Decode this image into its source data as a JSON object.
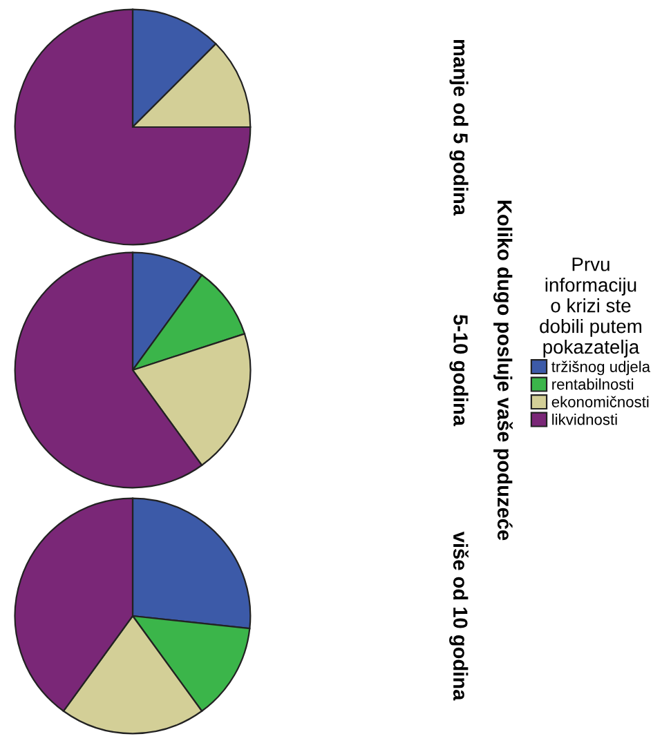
{
  "chart_data": [
    {
      "type": "pie",
      "title": "manje od 5 godina",
      "legend_title": "Prvu\ninformaciju\no krizi ste\ndobili putem\npokazatelja",
      "legend": "right",
      "categories": [
        "tržišnog udjela",
        "rentabilnosti",
        "ekonomičnosti",
        "likvidnosti"
      ],
      "values": [
        12.5,
        0,
        12.5,
        75
      ],
      "colors": [
        "#3c5aa8",
        "#3bb54a",
        "#d3cf97",
        "#7a2777"
      ]
    },
    {
      "type": "pie",
      "title": "5-10 godina",
      "ylabel": "Koliko dugo posluje vaše poduzeće",
      "categories": [
        null,
        null,
        null,
        null
      ],
      "values": [
        10,
        10,
        20,
        60
      ],
      "colors": [
        "#3c5aa8",
        "#3bb54a",
        "#d3cf97",
        "#7a2777"
      ]
    },
    {
      "type": "pie",
      "title": "više od 10 godina",
      "categories": [
        null,
        null,
        null,
        null
      ],
      "values": [
        26.7,
        13.3,
        20,
        40
      ],
      "colors": [
        "#3c5aa8",
        "#3bb54a",
        "#d3cf97",
        "#7a2777"
      ]
    }
  ]
}
